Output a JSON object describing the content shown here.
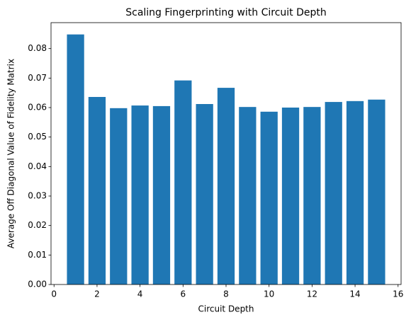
{
  "chart_data": {
    "type": "bar",
    "title": "Scaling Fingerprinting with Circuit Depth",
    "x_label": "Circuit Depth",
    "y_label": "Average Off Diagonal Value of Fidelity Matrix",
    "x": [
      1,
      2,
      3,
      4,
      5,
      6,
      7,
      8,
      9,
      10,
      11,
      12,
      13,
      14,
      15
    ],
    "values": [
      0.0848,
      0.0636,
      0.0598,
      0.0607,
      0.0605,
      0.0692,
      0.0612,
      0.0667,
      0.0602,
      0.0586,
      0.06,
      0.0602,
      0.0619,
      0.0622,
      0.0627
    ],
    "color": "#1f77b4",
    "xlim": [
      -0.14,
      16.14
    ],
    "xticks": [
      0,
      2,
      4,
      6,
      8,
      10,
      12,
      14,
      16
    ],
    "ylim": [
      0,
      0.0888
    ],
    "yticks": [
      {
        "value": 0,
        "label": "0.00"
      },
      {
        "value": 0.01,
        "label": "0.01"
      },
      {
        "value": 0.02,
        "label": "0.02"
      },
      {
        "value": 0.03,
        "label": "0.03"
      },
      {
        "value": 0.04,
        "label": "0.04"
      },
      {
        "value": 0.05,
        "label": "0.05"
      },
      {
        "value": 0.06,
        "label": "0.06"
      },
      {
        "value": 0.07,
        "label": "0.07"
      },
      {
        "value": 0.08,
        "label": "0.08"
      }
    ],
    "grid": false
  }
}
